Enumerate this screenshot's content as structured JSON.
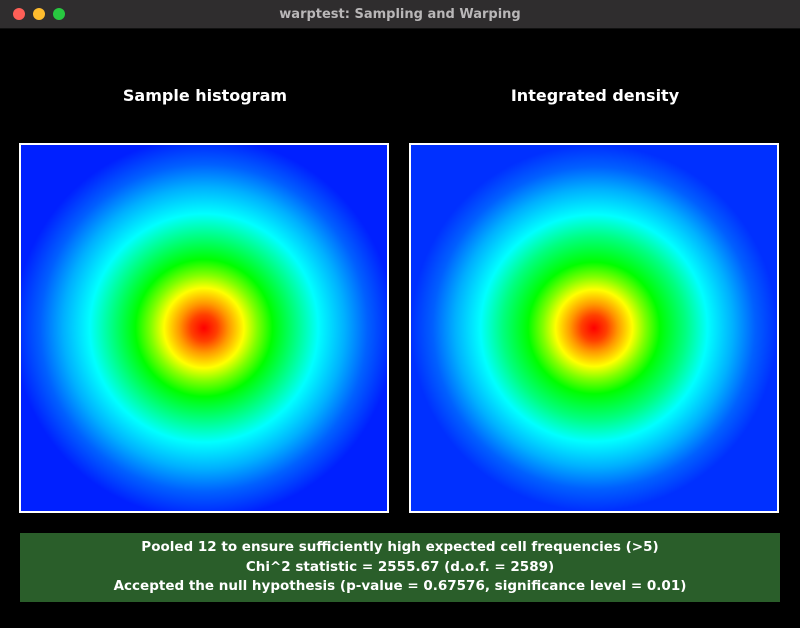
{
  "window": {
    "title": "warptest: Sampling and Warping"
  },
  "panels": [
    {
      "title": "Sample histogram"
    },
    {
      "title": "Integrated density"
    }
  ],
  "status": {
    "lines": [
      "Pooled 12 to ensure sufficiently high expected cell frequencies (>5)",
      "Chi^2 statistic = 2555.67 (d.o.f. = 2589)",
      "Accepted the null hypothesis (p-value = 0.67576, significance level = 0.01)"
    ]
  }
}
